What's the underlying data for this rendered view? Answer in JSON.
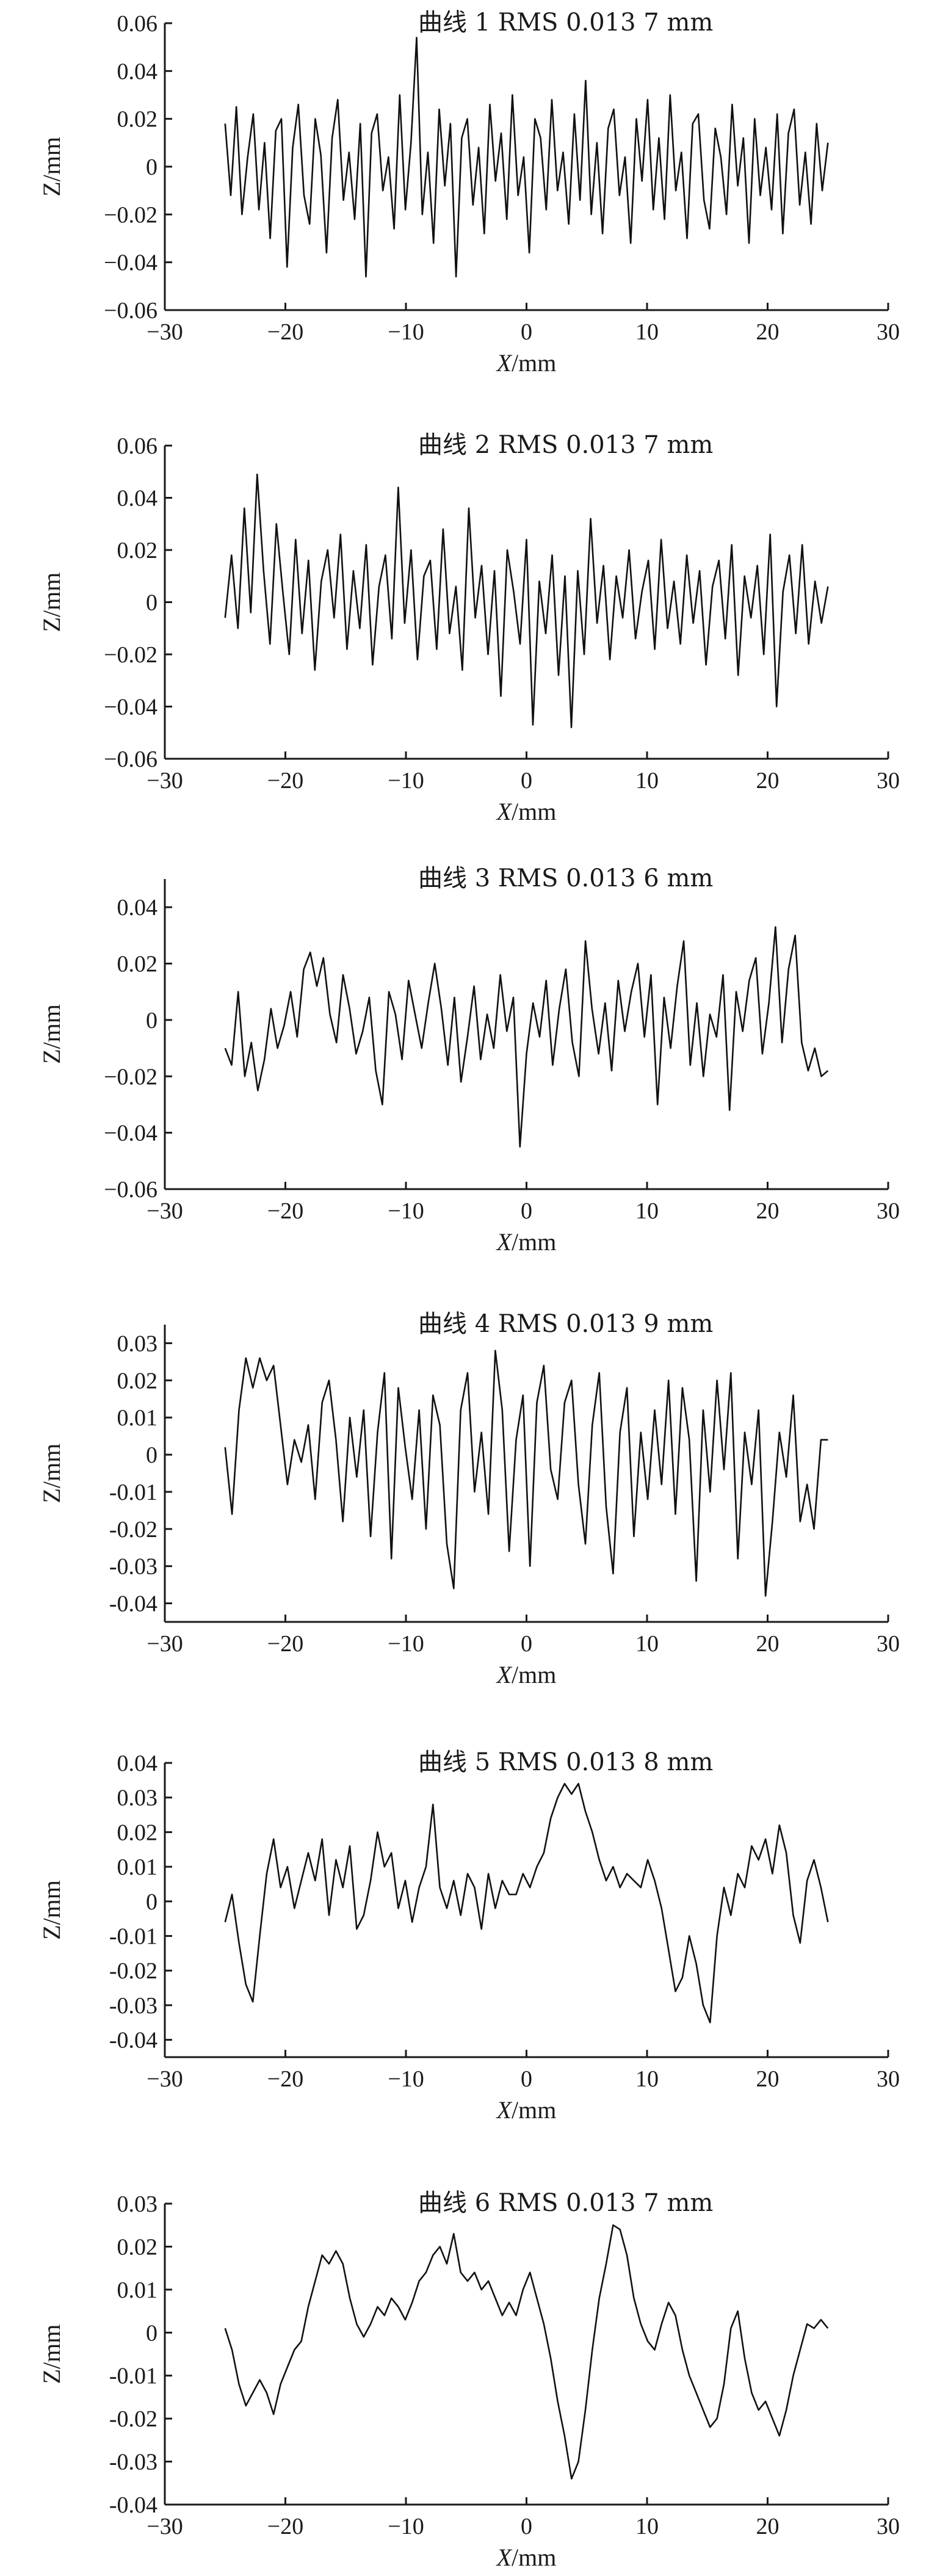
{
  "colors": {
    "ink": "#111111",
    "background": "#ffffff"
  },
  "chart_data": [
    {
      "type": "line",
      "title": "曲线 1 RMS  0.013 7 mm",
      "xlabel_var": "X",
      "xlabel_unit": "/mm",
      "ylabel": "Z/mm",
      "xlim": [
        -30,
        30
      ],
      "ylim": [
        -0.06,
        0.06
      ],
      "xticks": [
        -30,
        -20,
        -10,
        0,
        10,
        20,
        30
      ],
      "xtick_labels": [
        "−30",
        "−20",
        "−10",
        "0",
        "10",
        "20",
        "30"
      ],
      "yticks": [
        -0.06,
        -0.04,
        -0.02,
        0,
        0.02,
        0.04,
        0.06
      ],
      "ytick_labels": [
        "−0.06",
        "−0.04",
        "−0.02",
        "0",
        "0.02",
        "0.04",
        "0.06"
      ],
      "grid": false,
      "series": [
        {
          "x_range": [
            -25,
            25
          ],
          "y": [
            0.018,
            -0.012,
            0.025,
            -0.02,
            0.004,
            0.022,
            -0.018,
            0.01,
            -0.03,
            0.015,
            0.02,
            -0.042,
            0.008,
            0.026,
            -0.012,
            -0.024,
            0.02,
            0.005,
            -0.036,
            0.012,
            0.028,
            -0.014,
            0.006,
            -0.022,
            0.018,
            -0.046,
            0.014,
            0.022,
            -0.01,
            0.004,
            -0.026,
            0.03,
            -0.018,
            0.01,
            0.054,
            -0.02,
            0.006,
            -0.032,
            0.024,
            -0.008,
            0.018,
            -0.046,
            0.012,
            0.02,
            -0.016,
            0.008,
            -0.028,
            0.026,
            -0.006,
            0.014,
            -0.022,
            0.03,
            -0.012,
            0.004,
            -0.036,
            0.02,
            0.012,
            -0.018,
            0.028,
            -0.01,
            0.006,
            -0.024,
            0.022,
            -0.014,
            0.036,
            -0.02,
            0.01,
            -0.028,
            0.016,
            0.024,
            -0.012,
            0.004,
            -0.032,
            0.02,
            -0.006,
            0.028,
            -0.018,
            0.012,
            -0.022,
            0.03,
            -0.01,
            0.006,
            -0.03,
            0.018,
            0.022,
            -0.014,
            -0.026,
            0.016,
            0.004,
            -0.02,
            0.026,
            -0.008,
            0.012,
            -0.032,
            0.02,
            -0.012,
            0.008,
            -0.018,
            0.022,
            -0.028,
            0.014,
            0.024,
            -0.016,
            0.006,
            -0.024,
            0.018,
            -0.01,
            0.01
          ]
        }
      ]
    },
    {
      "type": "line",
      "title": "曲线 2 RMS  0.013 7 mm",
      "xlabel_var": "X",
      "xlabel_unit": "/mm",
      "ylabel": "Z/mm",
      "xlim": [
        -30,
        30
      ],
      "ylim": [
        -0.06,
        0.06
      ],
      "xticks": [
        -30,
        -20,
        -10,
        0,
        10,
        20,
        30
      ],
      "xtick_labels": [
        "−30",
        "−20",
        "−10",
        "0",
        "10",
        "20",
        "30"
      ],
      "yticks": [
        -0.06,
        -0.04,
        -0.02,
        0,
        0.02,
        0.04,
        0.06
      ],
      "ytick_labels": [
        "−0.06",
        "−0.04",
        "−0.02",
        "0",
        "0.02",
        "0.04",
        "0.06"
      ],
      "grid": false,
      "series": [
        {
          "x_range": [
            -25,
            25
          ],
          "y": [
            -0.006,
            0.018,
            -0.01,
            0.036,
            -0.004,
            0.049,
            0.012,
            -0.016,
            0.03,
            0.004,
            -0.02,
            0.024,
            -0.012,
            0.016,
            -0.026,
            0.008,
            0.02,
            -0.006,
            0.026,
            -0.018,
            0.012,
            -0.01,
            0.022,
            -0.024,
            0.006,
            0.018,
            -0.014,
            0.044,
            -0.008,
            0.02,
            -0.022,
            0.01,
            0.016,
            -0.018,
            0.028,
            -0.012,
            0.006,
            -0.026,
            0.036,
            -0.006,
            0.014,
            -0.02,
            0.012,
            -0.036,
            0.02,
            0.004,
            -0.016,
            0.024,
            -0.047,
            0.008,
            -0.012,
            0.018,
            -0.028,
            0.01,
            -0.048,
            0.012,
            -0.02,
            0.032,
            -0.008,
            0.014,
            -0.022,
            0.01,
            -0.006,
            0.02,
            -0.014,
            0.004,
            0.016,
            -0.018,
            0.024,
            -0.01,
            0.008,
            -0.016,
            0.018,
            -0.008,
            0.012,
            -0.024,
            0.006,
            0.016,
            -0.014,
            0.022,
            -0.028,
            0.01,
            -0.006,
            0.014,
            -0.02,
            0.026,
            -0.04,
            0.004,
            0.018,
            -0.012,
            0.022,
            -0.016,
            0.008,
            -0.008,
            0.006
          ]
        }
      ]
    },
    {
      "type": "line",
      "title": "曲线 3 RMS  0.013 6 mm",
      "xlabel_var": "X",
      "xlabel_unit": "/mm",
      "ylabel": "Z/mm",
      "xlim": [
        -30,
        30
      ],
      "ylim": [
        -0.06,
        0.05
      ],
      "xticks": [
        -30,
        -20,
        -10,
        0,
        10,
        20,
        30
      ],
      "xtick_labels": [
        "−30",
        "−20",
        "−10",
        "0",
        "10",
        "20",
        "30"
      ],
      "yticks": [
        -0.06,
        -0.04,
        -0.02,
        0,
        0.02,
        0.04
      ],
      "ytick_labels": [
        "−0.06",
        "−0.04",
        "−0.02",
        "0",
        "0.02",
        "0.04"
      ],
      "grid": false,
      "series": [
        {
          "x_range": [
            -25,
            25
          ],
          "y": [
            -0.01,
            -0.016,
            0.01,
            -0.02,
            -0.008,
            -0.025,
            -0.014,
            0.004,
            -0.01,
            -0.002,
            0.01,
            -0.006,
            0.018,
            0.024,
            0.012,
            0.022,
            0.002,
            -0.008,
            0.016,
            0.004,
            -0.012,
            -0.004,
            0.008,
            -0.018,
            -0.03,
            0.01,
            0.002,
            -0.014,
            0.014,
            0.002,
            -0.01,
            0.006,
            0.02,
            0.004,
            -0.016,
            0.008,
            -0.022,
            -0.006,
            0.012,
            -0.014,
            0.002,
            -0.01,
            0.016,
            -0.004,
            0.008,
            -0.045,
            -0.012,
            0.006,
            -0.006,
            0.014,
            -0.016,
            0.004,
            0.018,
            -0.008,
            -0.02,
            0.028,
            0.004,
            -0.012,
            0.006,
            -0.018,
            0.014,
            -0.004,
            0.01,
            0.02,
            -0.006,
            0.016,
            -0.03,
            0.008,
            -0.01,
            0.012,
            0.028,
            -0.016,
            0.006,
            -0.02,
            0.002,
            -0.006,
            0.016,
            -0.032,
            0.01,
            -0.004,
            0.014,
            0.022,
            -0.012,
            0.006,
            0.033,
            -0.008,
            0.018,
            0.03,
            -0.008,
            -0.018,
            -0.01,
            -0.02,
            -0.018
          ]
        }
      ]
    },
    {
      "type": "line",
      "title": "曲线 4 RMS  0.013 9 mm",
      "xlabel_var": "X",
      "xlabel_unit": "/mm",
      "ylabel": "Z/mm",
      "xlim": [
        -30,
        30
      ],
      "ylim": [
        -0.045,
        0.035
      ],
      "xticks": [
        -30,
        -20,
        -10,
        0,
        10,
        20,
        30
      ],
      "xtick_labels": [
        "−30",
        "−20",
        "−10",
        "0",
        "10",
        "20",
        "30"
      ],
      "yticks": [
        -0.04,
        -0.03,
        -0.02,
        -0.01,
        0,
        0.01,
        0.02,
        0.03
      ],
      "ytick_labels": [
        "-0.04",
        "-0.03",
        "-0.02",
        "-0.01",
        "0",
        "0.01",
        "0.02",
        "0.03"
      ],
      "grid": false,
      "series": [
        {
          "x_range": [
            -25,
            25
          ],
          "y": [
            0.002,
            -0.016,
            0.012,
            0.026,
            0.018,
            0.026,
            0.02,
            0.024,
            0.008,
            -0.008,
            0.004,
            -0.002,
            0.008,
            -0.012,
            0.014,
            0.02,
            0.004,
            -0.018,
            0.01,
            -0.006,
            0.012,
            -0.022,
            0.006,
            0.022,
            -0.028,
            0.018,
            0.002,
            -0.012,
            0.012,
            -0.02,
            0.016,
            0.008,
            -0.024,
            -0.036,
            0.012,
            0.022,
            -0.01,
            0.006,
            -0.016,
            0.028,
            0.012,
            -0.026,
            0.004,
            0.016,
            -0.03,
            0.014,
            0.024,
            -0.004,
            -0.012,
            0.014,
            0.02,
            -0.008,
            -0.024,
            0.008,
            0.022,
            -0.014,
            -0.032,
            0.006,
            0.018,
            -0.022,
            0.006,
            -0.012,
            0.012,
            -0.008,
            0.02,
            -0.016,
            0.018,
            0.004,
            -0.034,
            0.012,
            -0.01,
            0.02,
            -0.004,
            0.022,
            -0.028,
            0.006,
            -0.008,
            0.012,
            -0.038,
            -0.018,
            0.006,
            -0.006,
            0.016,
            -0.018,
            -0.008,
            -0.02,
            0.004,
            0.004
          ]
        }
      ]
    },
    {
      "type": "line",
      "title": "曲线 5 RMS  0.013 8 mm",
      "xlabel_var": "X",
      "xlabel_unit": "/mm",
      "ylabel": "Z/mm",
      "xlim": [
        -30,
        30
      ],
      "ylim": [
        -0.045,
        0.04
      ],
      "xticks": [
        -30,
        -20,
        -10,
        0,
        10,
        20,
        30
      ],
      "xtick_labels": [
        "−30",
        "−20",
        "−10",
        "0",
        "10",
        "20",
        "30"
      ],
      "yticks": [
        -0.04,
        -0.03,
        -0.02,
        -0.01,
        0,
        0.01,
        0.02,
        0.03,
        0.04
      ],
      "ytick_labels": [
        "-0.04",
        "-0.03",
        "-0.02",
        "-0.01",
        "0",
        "0.01",
        "0.02",
        "0.03",
        "0.04"
      ],
      "grid": false,
      "series": [
        {
          "x_range": [
            -25,
            25
          ],
          "y": [
            -0.006,
            0.002,
            -0.012,
            -0.024,
            -0.029,
            -0.01,
            0.008,
            0.018,
            0.004,
            0.01,
            -0.002,
            0.006,
            0.014,
            0.006,
            0.018,
            -0.004,
            0.012,
            0.004,
            0.016,
            -0.008,
            -0.004,
            0.006,
            0.02,
            0.01,
            0.014,
            -0.002,
            0.006,
            -0.006,
            0.004,
            0.01,
            0.028,
            0.004,
            -0.002,
            0.006,
            -0.004,
            0.008,
            0.004,
            -0.008,
            0.008,
            -0.002,
            0.006,
            0.002,
            0.002,
            0.008,
            0.004,
            0.01,
            0.014,
            0.024,
            0.03,
            0.034,
            0.031,
            0.034,
            0.026,
            0.02,
            0.012,
            0.006,
            0.01,
            0.004,
            0.008,
            0.006,
            0.004,
            0.012,
            0.006,
            -0.002,
            -0.014,
            -0.026,
            -0.022,
            -0.01,
            -0.018,
            -0.03,
            -0.035,
            -0.01,
            0.004,
            -0.004,
            0.008,
            0.004,
            0.016,
            0.012,
            0.018,
            0.008,
            0.022,
            0.014,
            -0.004,
            -0.012,
            0.006,
            0.012,
            0.004,
            -0.006
          ]
        }
      ]
    },
    {
      "type": "line",
      "title": "曲线 6 RMS  0.013 7 mm",
      "xlabel_var": "X",
      "xlabel_unit": "/mm",
      "ylabel": "Z/mm",
      "xlim": [
        -30,
        30
      ],
      "ylim": [
        -0.04,
        0.03
      ],
      "xticks": [
        -30,
        -20,
        -10,
        0,
        10,
        20,
        30
      ],
      "xtick_labels": [
        "−30",
        "−20",
        "−10",
        "0",
        "10",
        "20",
        "30"
      ],
      "yticks": [
        -0.04,
        -0.03,
        -0.02,
        -0.01,
        0,
        0.01,
        0.02,
        0.03
      ],
      "ytick_labels": [
        "-0.04",
        "-0.03",
        "-0.02",
        "-0.01",
        "0",
        "0.01",
        "0.02",
        "0.03"
      ],
      "grid": false,
      "series": [
        {
          "x_range": [
            -25,
            25
          ],
          "y": [
            0.001,
            -0.004,
            -0.012,
            -0.017,
            -0.014,
            -0.011,
            -0.014,
            -0.019,
            -0.012,
            -0.008,
            -0.004,
            -0.002,
            0.006,
            0.012,
            0.018,
            0.016,
            0.019,
            0.016,
            0.008,
            0.002,
            -0.001,
            0.002,
            0.006,
            0.004,
            0.008,
            0.006,
            0.003,
            0.007,
            0.012,
            0.014,
            0.018,
            0.02,
            0.016,
            0.023,
            0.014,
            0.012,
            0.014,
            0.01,
            0.012,
            0.008,
            0.004,
            0.007,
            0.004,
            0.01,
            0.014,
            0.008,
            0.002,
            -0.006,
            -0.016,
            -0.024,
            -0.034,
            -0.03,
            -0.018,
            -0.004,
            0.008,
            0.016,
            0.025,
            0.024,
            0.018,
            0.008,
            0.002,
            -0.002,
            -0.004,
            0.002,
            0.007,
            0.004,
            -0.004,
            -0.01,
            -0.014,
            -0.018,
            -0.022,
            -0.02,
            -0.012,
            0.001,
            0.005,
            -0.006,
            -0.014,
            -0.018,
            -0.016,
            -0.02,
            -0.024,
            -0.018,
            -0.01,
            -0.004,
            0.002,
            0.001,
            0.003,
            0.001
          ]
        }
      ]
    }
  ]
}
